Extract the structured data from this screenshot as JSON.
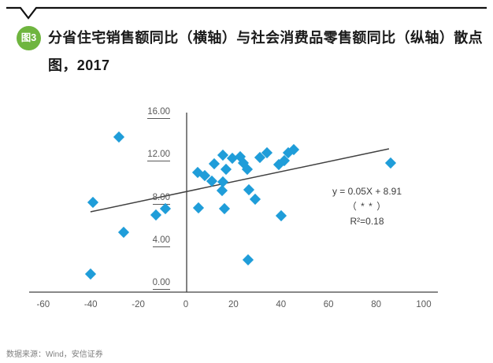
{
  "header": {
    "badge": "图3",
    "title": "分省住宅销售额同比（横轴）与社会消费品零售额同比（纵轴）散点图，2017"
  },
  "source": "数据来源：Wind，安信证券",
  "colors": {
    "marker_blue": "#1F9DD9",
    "badge_green": "#6FB53F",
    "axis_gray": "#404040",
    "tick_gray": "#595959",
    "source_gray": "#7f7f7f"
  },
  "chart_data": {
    "type": "scatter",
    "title": "分省住宅销售额同比（横轴）与社会消费品零售额同比（纵轴）散点图，2017",
    "xlabel": "",
    "ylabel": "",
    "x_ticks": [
      -60,
      -40,
      -20,
      0,
      20,
      40,
      60,
      80,
      100
    ],
    "y_ticks": [
      16,
      12,
      8,
      4,
      0
    ],
    "y_tick_labels": [
      "16.00",
      "12.00",
      "8.00",
      "4.00",
      "0.00"
    ],
    "xlim": [
      -66,
      106
    ],
    "ylim": [
      -0.3,
      16.6
    ],
    "grid": false,
    "legend": "none",
    "marker_color": "#1F9DD9",
    "points": [
      [
        -40,
        1.5
      ],
      [
        -39,
        8.2
      ],
      [
        -28,
        14.3
      ],
      [
        -26,
        5.4
      ],
      [
        -12.6,
        7.0
      ],
      [
        -8.6,
        7.6
      ],
      [
        5.0,
        11.0
      ],
      [
        7.8,
        10.7
      ],
      [
        5.3,
        7.7
      ],
      [
        10.9,
        10.2
      ],
      [
        11.9,
        11.8
      ],
      [
        15.5,
        12.6
      ],
      [
        15.6,
        10.1
      ],
      [
        17.0,
        11.3
      ],
      [
        15.2,
        9.3
      ],
      [
        16.2,
        7.6
      ],
      [
        19.5,
        12.3
      ],
      [
        22.9,
        12.5
      ],
      [
        24.3,
        11.9
      ],
      [
        25.7,
        11.3
      ],
      [
        26.5,
        9.4
      ],
      [
        29.0,
        8.5
      ],
      [
        26.0,
        2.8
      ],
      [
        31.0,
        12.4
      ],
      [
        34.0,
        12.8
      ],
      [
        39.0,
        11.7
      ],
      [
        41.5,
        12.1
      ],
      [
        43.0,
        12.8
      ],
      [
        45.3,
        13.1
      ],
      [
        40.0,
        6.9
      ],
      [
        86.0,
        11.9
      ]
    ],
    "trendline": {
      "equation": "y = 0.05X + 8.91",
      "significance": "（ * * ）",
      "r_squared": "R²=0.18",
      "x_start": -40.1,
      "y_start": 7.3,
      "x_end": 85.4,
      "y_end": 13.2
    }
  }
}
